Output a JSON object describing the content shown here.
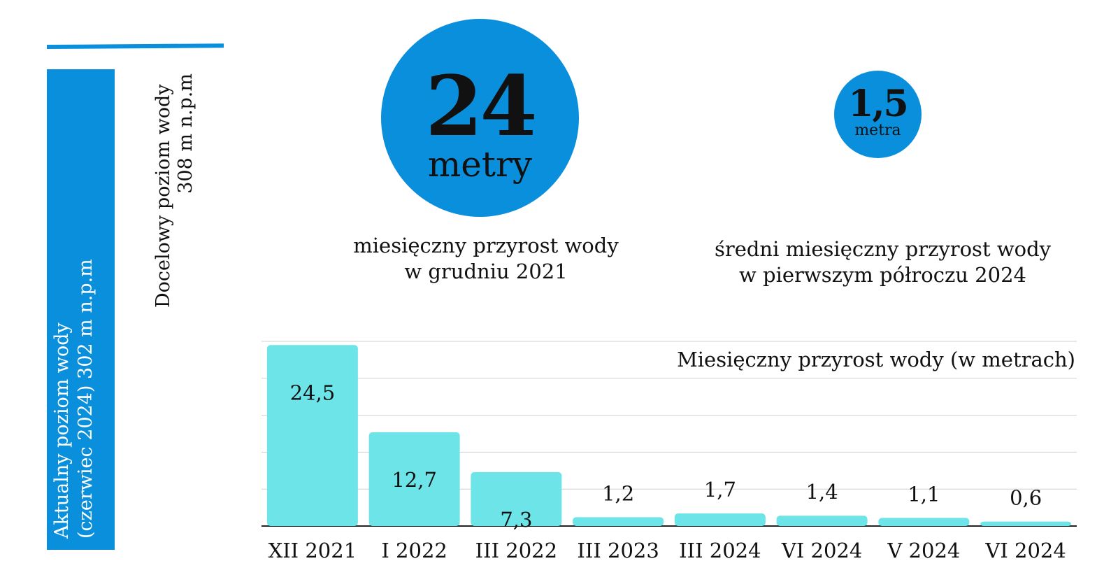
{
  "level_panel": {
    "current_line1": "Aktualny poziom wody",
    "current_line2": "(czerwiec 2024) 302 m n.p.m",
    "target_line1": "Docelowy poziom wody",
    "target_line2": "308 m n.p.m"
  },
  "stat_big": {
    "value": "24",
    "unit": "metry",
    "caption_line1": "miesięczny przyrost wody",
    "caption_line2": "w grudniu 2021"
  },
  "stat_small": {
    "value": "1,5",
    "unit": "metra",
    "caption_line1": "średni miesięczny przyrost wody",
    "caption_line2": "w pierwszym półroczu 2024"
  },
  "colors": {
    "accent_blue": "#0a8fdc",
    "bar_cyan": "#6ce4e8",
    "grid": "#d0d0d0",
    "axis": "#222222"
  },
  "chart_data": {
    "type": "bar",
    "title": "Miesięczny przyrost wody (w metrach)",
    "categories": [
      "XII 2021",
      "I 2022",
      "III 2022",
      "III 2023",
      "III 2024",
      "VI 2024",
      "V 2024",
      "VI 2024"
    ],
    "values": [
      24.5,
      12.7,
      7.3,
      1.2,
      1.7,
      1.4,
      1.1,
      0.6
    ],
    "value_labels": [
      "24,5",
      "12,7",
      "7,3",
      "1,2",
      "1,7",
      "1,4",
      "1,1",
      "0,6"
    ],
    "ylim": [
      0,
      25
    ],
    "grid": true,
    "xlabel": "",
    "ylabel": ""
  }
}
